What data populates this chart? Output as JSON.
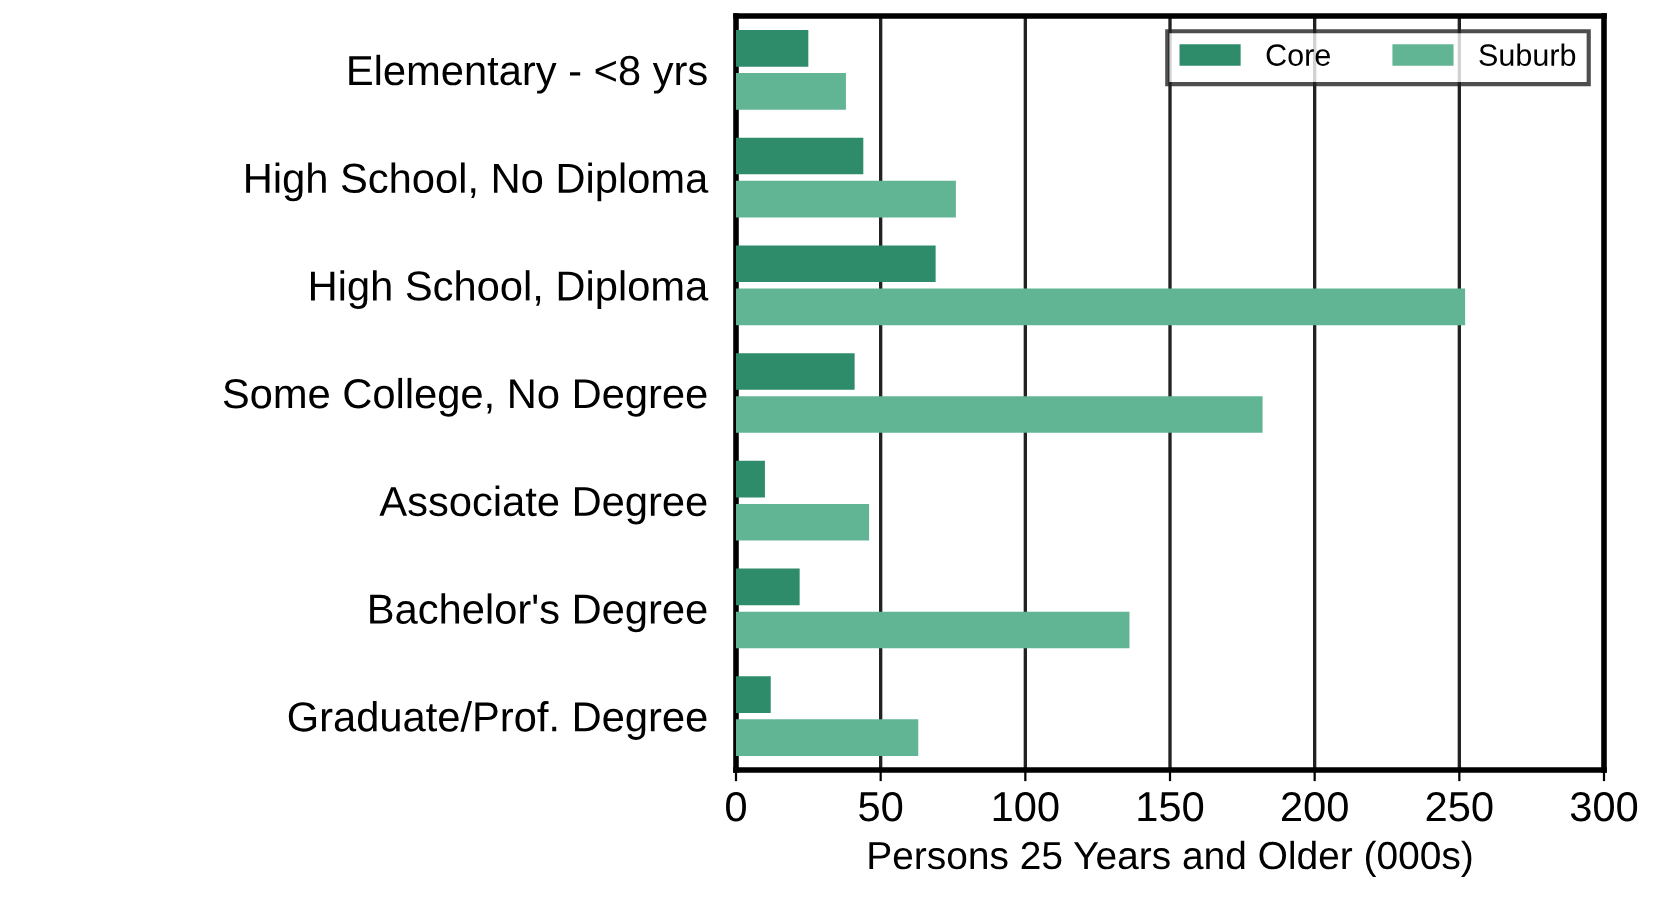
{
  "chart_data": {
    "type": "bar",
    "orientation": "horizontal",
    "xlabel": "Persons 25 Years and Older (000s)",
    "categories": [
      "Elementary - <8 yrs",
      "High School, No Diploma",
      "High School, Diploma",
      "Some College, No Degree",
      "Associate Degree",
      "Bachelor's Degree",
      "Graduate/Prof. Degree"
    ],
    "series": [
      {
        "name": "Core",
        "color": "#2f8c6b",
        "values": [
          25,
          44,
          69,
          41,
          10,
          22,
          12
        ]
      },
      {
        "name": "Suburb",
        "color": "#62b594",
        "values": [
          38,
          76,
          252,
          182,
          46,
          136,
          63
        ]
      }
    ],
    "xlim": [
      0,
      300
    ],
    "xticks": [
      0,
      50,
      100,
      150,
      200,
      250,
      300
    ],
    "grid": "x",
    "legend": "top right"
  }
}
